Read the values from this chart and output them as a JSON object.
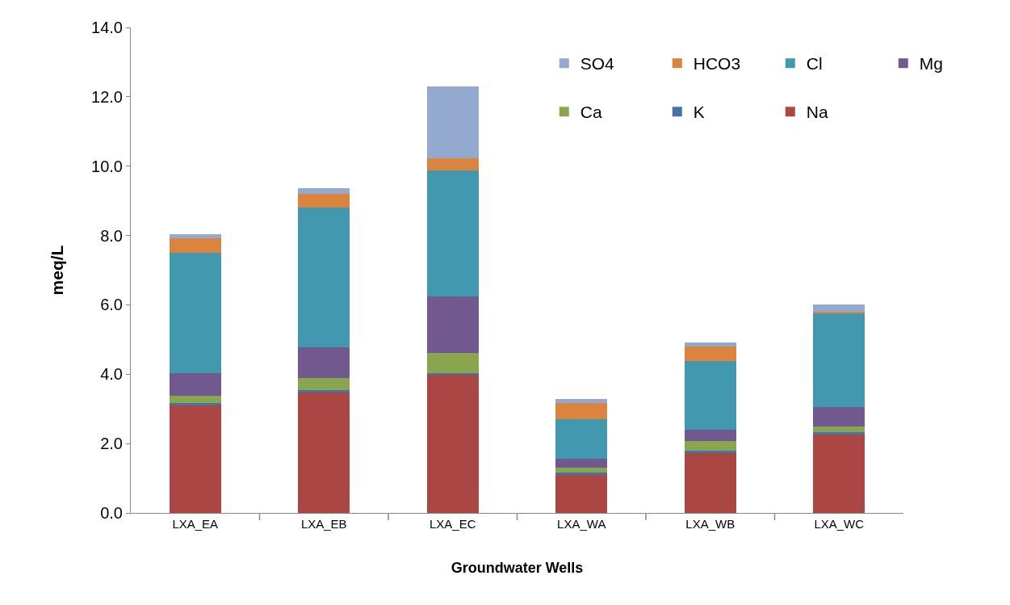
{
  "chart_data": {
    "type": "bar",
    "stacked": true,
    "xlabel": "Groundwater Wells",
    "ylabel": "meq/L",
    "categories": [
      "LXA_EA",
      "LXA_EB",
      "LXA_EC",
      "LXA_WA",
      "LXA_WB",
      "LXA_WC"
    ],
    "series": [
      {
        "name": "Na",
        "color": "#aa4643",
        "values": [
          3.09,
          3.48,
          3.98,
          1.1,
          1.72,
          2.25
        ]
      },
      {
        "name": "K",
        "color": "#4572a7",
        "values": [
          0.08,
          0.07,
          0.06,
          0.06,
          0.08,
          0.07
        ]
      },
      {
        "name": "Ca",
        "color": "#89a54e",
        "values": [
          0.21,
          0.33,
          0.57,
          0.14,
          0.28,
          0.18
        ]
      },
      {
        "name": "Mg",
        "color": "#71588f",
        "values": [
          0.66,
          0.9,
          1.64,
          0.25,
          0.32,
          0.56
        ]
      },
      {
        "name": "Cl",
        "color": "#4198af",
        "values": [
          3.46,
          4.02,
          3.63,
          1.16,
          1.99,
          2.69
        ]
      },
      {
        "name": "HCO3",
        "color": "#db843d",
        "values": [
          0.43,
          0.41,
          0.35,
          0.46,
          0.42,
          0.05
        ]
      },
      {
        "name": "SO4",
        "color": "#93a9cf",
        "values": [
          0.1,
          0.15,
          2.07,
          0.11,
          0.11,
          0.2
        ]
      }
    ],
    "ylim": [
      0,
      14
    ],
    "yticks": [
      {
        "value": 0,
        "label": "0.0"
      },
      {
        "value": 2,
        "label": "2.0"
      },
      {
        "value": 4,
        "label": "4.0"
      },
      {
        "value": 6,
        "label": "6.0"
      },
      {
        "value": 8,
        "label": "8.0"
      },
      {
        "value": 10,
        "label": "10.0"
      },
      {
        "value": 12,
        "label": "12.0"
      },
      {
        "value": 14,
        "label": "14.0"
      }
    ],
    "legend": "top right",
    "grid": false
  }
}
